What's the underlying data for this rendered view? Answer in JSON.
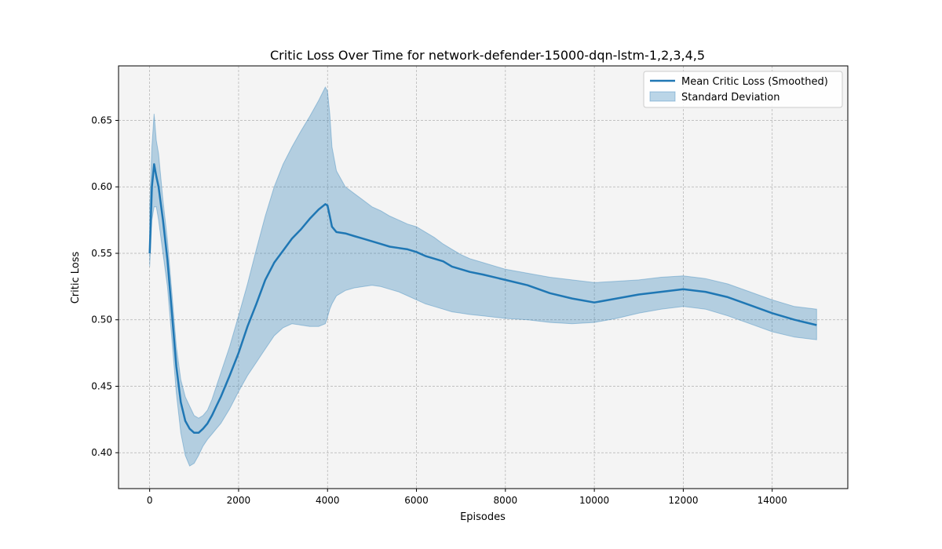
{
  "chart_data": {
    "type": "line",
    "title": "Critic Loss Over Time for network-defender-15000-dqn-lstm-1,2,3,4,5",
    "xlabel": "Episodes",
    "ylabel": "Critic Loss",
    "xlim": [
      -700,
      15700
    ],
    "ylim": [
      0.373,
      0.691
    ],
    "xticks": [
      0,
      2000,
      4000,
      6000,
      8000,
      10000,
      12000,
      14000
    ],
    "yticks": [
      0.4,
      0.45,
      0.5,
      0.55,
      0.6,
      0.65
    ],
    "xtick_labels": [
      "0",
      "2000",
      "4000",
      "6000",
      "8000",
      "10000",
      "12000",
      "14000"
    ],
    "ytick_labels": [
      "0.40",
      "0.45",
      "0.50",
      "0.55",
      "0.60",
      "0.65"
    ],
    "grid": true,
    "legend_position": "top-right",
    "colors": {
      "line": "#1f77b4",
      "band": "#1f77b4",
      "background": "#f4f4f4",
      "grid": "#b0b0b0"
    },
    "series": [
      {
        "name": "Mean Critic Loss (Smoothed)",
        "kind": "line",
        "x": [
          0,
          50,
          100,
          150,
          200,
          300,
          400,
          500,
          600,
          700,
          800,
          900,
          1000,
          1100,
          1200,
          1300,
          1400,
          1500,
          1600,
          1800,
          2000,
          2200,
          2400,
          2600,
          2800,
          3000,
          3200,
          3400,
          3600,
          3800,
          3950,
          4000,
          4050,
          4100,
          4200,
          4400,
          4600,
          4800,
          5000,
          5200,
          5400,
          5600,
          5800,
          6000,
          6200,
          6400,
          6600,
          6800,
          7000,
          7200,
          7500,
          8000,
          8500,
          9000,
          9500,
          10000,
          10500,
          11000,
          11500,
          12000,
          12500,
          13000,
          13500,
          14000,
          14500,
          15000
        ],
        "values": [
          0.55,
          0.6,
          0.617,
          0.608,
          0.6,
          0.575,
          0.545,
          0.505,
          0.465,
          0.438,
          0.424,
          0.418,
          0.415,
          0.415,
          0.418,
          0.422,
          0.428,
          0.435,
          0.442,
          0.458,
          0.475,
          0.495,
          0.512,
          0.53,
          0.543,
          0.552,
          0.561,
          0.568,
          0.576,
          0.583,
          0.587,
          0.586,
          0.578,
          0.57,
          0.566,
          0.565,
          0.563,
          0.561,
          0.559,
          0.557,
          0.555,
          0.554,
          0.553,
          0.551,
          0.548,
          0.546,
          0.544,
          0.54,
          0.538,
          0.536,
          0.534,
          0.53,
          0.526,
          0.52,
          0.516,
          0.513,
          0.516,
          0.519,
          0.521,
          0.523,
          0.521,
          0.517,
          0.511,
          0.505,
          0.5,
          0.496
        ]
      },
      {
        "name": "Standard Deviation",
        "kind": "band",
        "x": [
          0,
          50,
          100,
          150,
          200,
          300,
          400,
          500,
          600,
          700,
          800,
          900,
          1000,
          1100,
          1200,
          1300,
          1400,
          1500,
          1600,
          1800,
          2000,
          2200,
          2400,
          2600,
          2800,
          3000,
          3200,
          3400,
          3600,
          3800,
          3950,
          4000,
          4050,
          4100,
          4200,
          4400,
          4600,
          4800,
          5000,
          5200,
          5400,
          5600,
          5800,
          6000,
          6200,
          6400,
          6600,
          6800,
          7000,
          7200,
          7500,
          8000,
          8500,
          9000,
          9500,
          10000,
          10500,
          11000,
          11500,
          12000,
          12500,
          13000,
          13500,
          14000,
          14500,
          15000
        ],
        "upper": [
          0.585,
          0.63,
          0.655,
          0.635,
          0.625,
          0.59,
          0.56,
          0.52,
          0.48,
          0.455,
          0.442,
          0.435,
          0.428,
          0.426,
          0.428,
          0.432,
          0.44,
          0.45,
          0.46,
          0.48,
          0.503,
          0.527,
          0.553,
          0.578,
          0.6,
          0.617,
          0.63,
          0.642,
          0.653,
          0.665,
          0.675,
          0.672,
          0.655,
          0.63,
          0.612,
          0.6,
          0.595,
          0.59,
          0.585,
          0.582,
          0.578,
          0.575,
          0.572,
          0.57,
          0.566,
          0.562,
          0.557,
          0.553,
          0.549,
          0.546,
          0.543,
          0.538,
          0.535,
          0.532,
          0.53,
          0.528,
          0.529,
          0.53,
          0.532,
          0.533,
          0.531,
          0.527,
          0.521,
          0.515,
          0.51,
          0.508
        ],
        "lower": [
          0.54,
          0.575,
          0.585,
          0.585,
          0.575,
          0.55,
          0.525,
          0.485,
          0.445,
          0.415,
          0.398,
          0.39,
          0.392,
          0.398,
          0.405,
          0.41,
          0.414,
          0.418,
          0.422,
          0.433,
          0.446,
          0.458,
          0.468,
          0.478,
          0.488,
          0.494,
          0.497,
          0.496,
          0.495,
          0.495,
          0.497,
          0.502,
          0.508,
          0.512,
          0.518,
          0.522,
          0.524,
          0.525,
          0.526,
          0.525,
          0.523,
          0.521,
          0.518,
          0.515,
          0.512,
          0.51,
          0.508,
          0.506,
          0.505,
          0.504,
          0.503,
          0.501,
          0.5,
          0.498,
          0.497,
          0.498,
          0.501,
          0.505,
          0.508,
          0.51,
          0.508,
          0.503,
          0.497,
          0.491,
          0.487,
          0.485
        ]
      }
    ]
  }
}
